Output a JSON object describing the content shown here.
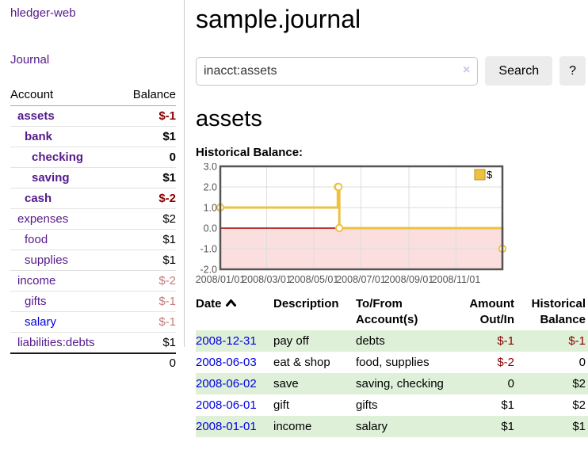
{
  "app": {
    "brand": "hledger-web",
    "nav": {
      "journal": "Journal"
    }
  },
  "sidebar": {
    "headers": {
      "account": "Account",
      "balance": "Balance"
    },
    "rows": [
      {
        "account": "assets",
        "balance": "$-1"
      },
      {
        "account": "bank",
        "balance": "$1"
      },
      {
        "account": "checking",
        "balance": "0"
      },
      {
        "account": "saving",
        "balance": "$1"
      },
      {
        "account": "cash",
        "balance": "$-2"
      },
      {
        "account": "expenses",
        "balance": "$2"
      },
      {
        "account": "food",
        "balance": "$1"
      },
      {
        "account": "supplies",
        "balance": "$1"
      },
      {
        "account": "income",
        "balance": "$-2"
      },
      {
        "account": "gifts",
        "balance": "$-1"
      },
      {
        "account": "salary",
        "balance": "$-1"
      },
      {
        "account": "liabilities:debts",
        "balance": "$1"
      }
    ],
    "total": "0"
  },
  "main": {
    "title": "sample.journal",
    "search": {
      "value": "inacct:assets",
      "clear_icon": "×",
      "button": "Search",
      "help_button": "?"
    },
    "account_heading": "assets",
    "chart_title": "Historical Balance:"
  },
  "chart_data": {
    "type": "line",
    "step": true,
    "title": "Historical Balance:",
    "series": [
      {
        "name": "$",
        "color": "#edc240",
        "points": [
          [
            "2008-01-01",
            1
          ],
          [
            "2008-06-01",
            2
          ],
          [
            "2008-06-02",
            2
          ],
          [
            "2008-06-03",
            0
          ],
          [
            "2008-12-31",
            -1
          ]
        ]
      }
    ],
    "x_ticks": [
      "2008/01/01",
      "2008/03/01",
      "2008/05/01",
      "2008/07/01",
      "2008/09/01",
      "2008/11/01"
    ],
    "y_ticks": [
      3,
      2,
      1,
      0,
      -1,
      -2
    ],
    "xlim": [
      "2008-01-01",
      "2008-12-31"
    ],
    "ylim": [
      -2,
      3
    ],
    "grid": true,
    "legend_position": "top-right",
    "negative_region_color": "#fbdfdf",
    "zero_line_color": "#a40000",
    "border_color": "#545454"
  },
  "register": {
    "headers": {
      "date": "Date",
      "description": "Description",
      "accounts": "To/From Account(s)",
      "amount": "Amount Out/In",
      "balance": "Historical Balance"
    },
    "rows": [
      {
        "date": "2008-12-31",
        "description": "pay off",
        "accounts": "debts",
        "amount": "$-1",
        "balance": "$-1"
      },
      {
        "date": "2008-06-03",
        "description": "eat & shop",
        "accounts": "food, supplies",
        "amount": "$-2",
        "balance": "0"
      },
      {
        "date": "2008-06-02",
        "description": "save",
        "accounts": "saving, checking",
        "amount": "0",
        "balance": "$2"
      },
      {
        "date": "2008-06-01",
        "description": "gift",
        "accounts": "gifts",
        "amount": "$1",
        "balance": "$2"
      },
      {
        "date": "2008-01-01",
        "description": "income",
        "accounts": "salary",
        "amount": "$1",
        "balance": "$1"
      }
    ]
  }
}
